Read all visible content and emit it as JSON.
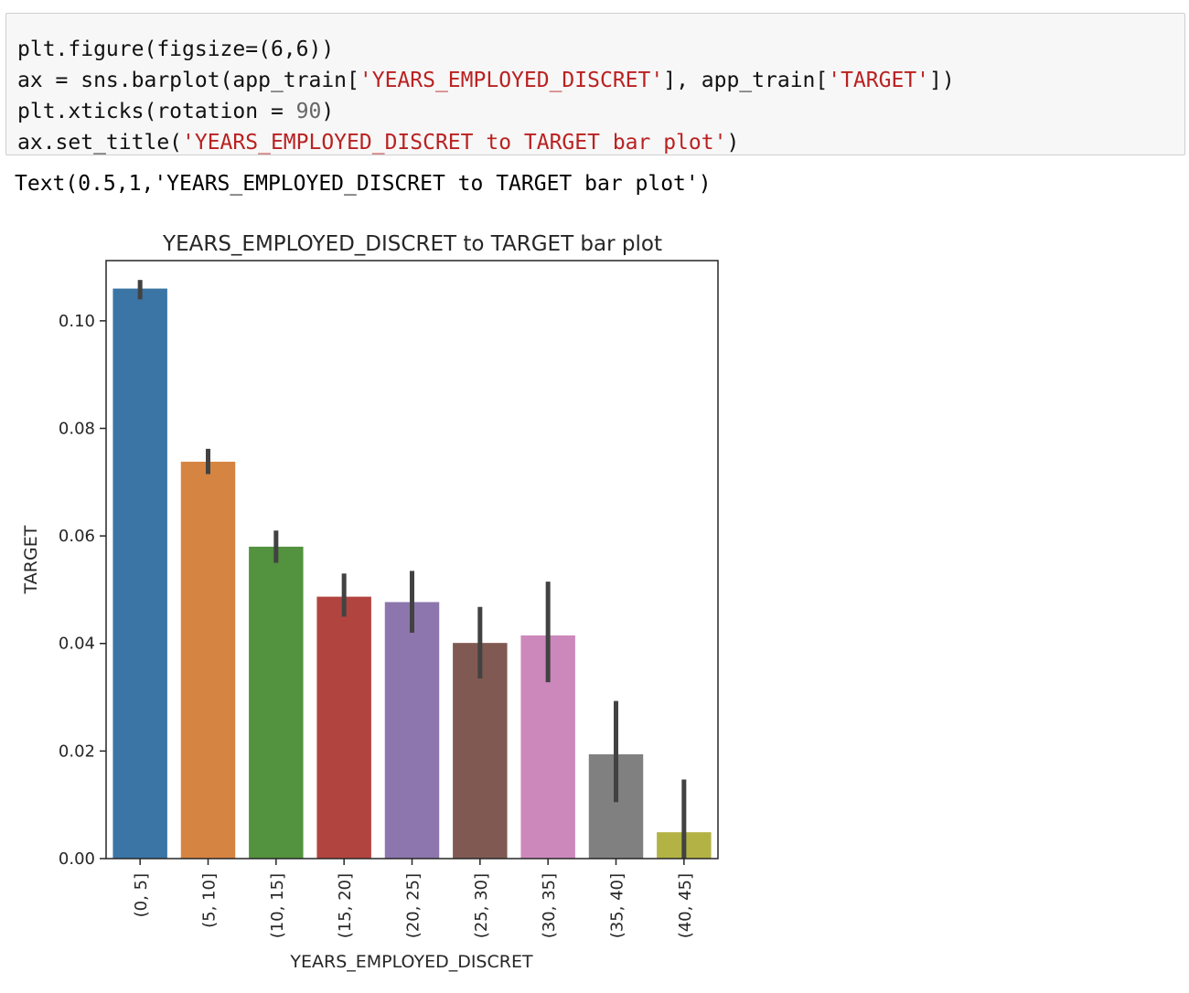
{
  "code_cell": {
    "line1": "plt.figure(figsize=(6,6))",
    "line2_prefix": "ax = sns.barplot(app_train[",
    "line2_str1": "'YEARS_EMPLOYED_DISCRET'",
    "line2_mid": "], app_train[",
    "line2_str2": "'TARGET'",
    "line2_suffix": "])",
    "line3_prefix": "plt.xticks(rotation = ",
    "line3_num": "90",
    "line3_suffix": ")",
    "line4_prefix": "ax.set_title(",
    "line4_str": "'YEARS_EMPLOYED_DISCRET to TARGET bar plot'",
    "line4_suffix": ")"
  },
  "output": {
    "text": "Text(0.5,1,'YEARS_EMPLOYED_DISCRET to TARGET bar plot')"
  },
  "chart_data": {
    "type": "bar",
    "title": "YEARS_EMPLOYED_DISCRET to TARGET bar plot",
    "xlabel": "YEARS_EMPLOYED_DISCRET",
    "ylabel": "TARGET",
    "categories": [
      "(0, 5]",
      "(5, 10]",
      "(10, 15]",
      "(15, 20]",
      "(20, 25]",
      "(25, 30]",
      "(30, 35]",
      "(35, 40]",
      "(40, 45]"
    ],
    "values": [
      0.106,
      0.0738,
      0.058,
      0.0487,
      0.0477,
      0.0401,
      0.0415,
      0.0194,
      0.0049
    ],
    "error_low": [
      0.104,
      0.0715,
      0.055,
      0.045,
      0.042,
      0.0335,
      0.0328,
      0.0105,
      0.0
    ],
    "error_high": [
      0.1076,
      0.0762,
      0.061,
      0.053,
      0.0535,
      0.0468,
      0.0515,
      0.0293,
      0.0147
    ],
    "colors": [
      "#3a75a5",
      "#d68442",
      "#53923f",
      "#b2443f",
      "#8d76ad",
      "#805a52",
      "#cc88bb",
      "#808080",
      "#b3b345"
    ],
    "yticks": [
      "0.00",
      "0.02",
      "0.04",
      "0.06",
      "0.08",
      "0.10"
    ],
    "ylim": [
      0,
      0.1112
    ],
    "grid": false,
    "xtick_rotation": 90
  }
}
